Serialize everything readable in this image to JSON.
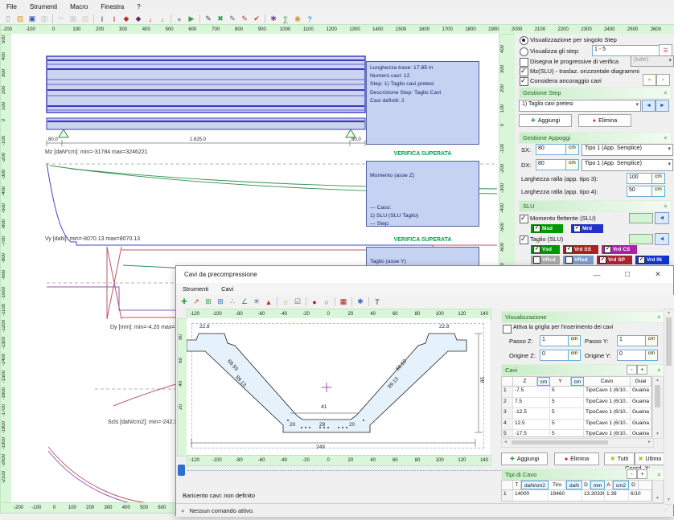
{
  "app": {
    "status_note": "main window"
  },
  "menubar": {
    "items": [
      "File",
      "Strumenti",
      "Macro",
      "Finestra",
      "?"
    ]
  },
  "toolbar": {
    "icons": [
      {
        "name": "new-document-icon",
        "glyph": "▯",
        "color": "#8899bb"
      },
      {
        "name": "open-folder-icon",
        "glyph": "▨",
        "color": "#d79b2a"
      },
      {
        "name": "save-icon",
        "glyph": "▣",
        "color": "#2f55b0"
      },
      {
        "name": "print-icon",
        "glyph": "▥",
        "color": "#8a8f99",
        "faded": true
      },
      {
        "sep": true
      },
      {
        "name": "cut-icon",
        "glyph": "✂",
        "color": "#9aa0a8",
        "faded": true
      },
      {
        "name": "copy-icon",
        "glyph": "▦",
        "color": "#9aa0a8",
        "faded": true
      },
      {
        "name": "paste-icon",
        "glyph": "▧",
        "color": "#b0a88a",
        "faded": true
      },
      {
        "sep": true
      },
      {
        "name": "section-beam-icon",
        "glyph": "I",
        "color": "#30343c"
      },
      {
        "name": "section-edit-icon",
        "glyph": "I",
        "color": "#8a2d2d"
      },
      {
        "name": "verify-red-icon",
        "glyph": "◆",
        "color": "#b92d2d"
      },
      {
        "name": "verify-dark-icon",
        "glyph": "◆",
        "color": "#5c3566"
      },
      {
        "name": "anchor-red-icon",
        "glyph": "↓",
        "color": "#c03030"
      },
      {
        "name": "anchor-green-icon",
        "glyph": "↓",
        "color": "#2f9e44"
      },
      {
        "sep": true
      },
      {
        "name": "sphere-icon",
        "glyph": "●",
        "color": "#9aa4ae"
      },
      {
        "name": "run-icon",
        "glyph": "▶",
        "color": "#2f9e44"
      },
      {
        "sep": true
      },
      {
        "name": "draw-tool-icon",
        "glyph": "✎",
        "color": "#3a3f46"
      },
      {
        "name": "erase-tool-icon",
        "glyph": "✖",
        "color": "#2f9e44"
      },
      {
        "name": "edit-tool-icon",
        "glyph": "✎",
        "color": "#56616c"
      },
      {
        "name": "brush-red-icon",
        "glyph": "✎",
        "color": "#b23a3a"
      },
      {
        "name": "check-red-icon",
        "glyph": "✔",
        "color": "#b23a3a"
      },
      {
        "sep": true
      },
      {
        "name": "gear-icon",
        "glyph": "✱",
        "color": "#7a4a9e"
      },
      {
        "name": "stats-icon",
        "glyph": "∑",
        "color": "#2f8f4f"
      },
      {
        "name": "pan-hand-icon",
        "glyph": "◉",
        "color": "#c89a2a"
      },
      {
        "name": "help-icon",
        "glyph": "?",
        "color": "#1a6ac8"
      }
    ]
  },
  "rulers": {
    "main_top": {
      "vals": [
        "-200",
        "-100",
        "0",
        "100",
        "200",
        "300",
        "400",
        "500",
        "600",
        "700",
        "800",
        "900",
        "1000",
        "1100",
        "1200",
        "1300",
        "1400",
        "1500",
        "1600",
        "1700",
        "1800",
        "1900",
        "2000",
        "2100",
        "2200",
        "2300",
        "2400",
        "2500",
        "2600"
      ],
      "start": 8,
      "step": 28.8,
      "v": false
    },
    "main_left": {
      "vals": [
        "500",
        "400",
        "300",
        "200",
        "100",
        "0",
        "-100",
        "-200",
        "-300",
        "-400",
        "-500",
        "-600",
        "-700",
        "-800",
        "-900",
        "-1000",
        "-1100",
        "-1200",
        "-1300",
        "-1400",
        "-1500",
        "-1600",
        "-1700",
        "-1800",
        "-1900",
        "-2000",
        "-2100"
      ],
      "start": 8,
      "step": 20.85,
      "v": true
    },
    "main_right": {
      "vals": [
        "400",
        "300",
        "200",
        "100",
        "0",
        "-100",
        "-200",
        "-300",
        "-400",
        "-500",
        "-600",
        "-700"
      ],
      "start": 20,
      "step": 24.6,
      "v": true
    },
    "main_bottom": {
      "vals": [
        "-200",
        "-100",
        "0",
        "100",
        "200",
        "300",
        "400",
        "500",
        "600",
        "700"
      ],
      "start": 22,
      "step": 22.3,
      "v": false
    },
    "child_top": {
      "vals": [
        "-120",
        "-100",
        "-80",
        "-60",
        "-40",
        "-20",
        "0",
        "20",
        "40",
        "60",
        "80",
        "100",
        "120",
        "140"
      ],
      "start": 9,
      "step": 27.7,
      "v": false
    },
    "child_bottom": {
      "vals": [
        "-120",
        "-100",
        "-80",
        "-60",
        "-40",
        "-20",
        "0",
        "20",
        "40",
        "60",
        "80",
        "100",
        "120",
        "140"
      ],
      "start": 9,
      "step": 27.7,
      "v": false
    },
    "child_left": {
      "vals": [
        "80",
        "60",
        "40",
        "20"
      ],
      "start": 26,
      "step": 29,
      "v": true
    }
  },
  "canvas": {
    "beam": {
      "dim_left": "80.0",
      "dim_mid": "1.625.0",
      "dim_right": "80.0"
    },
    "info_box": [
      "Lunghezza trave: 17.85 m",
      "Numero cavi: 12",
      "Step: 1) Taglio cavi pretesi",
      "Descrizione Step: Taglio Cavi",
      "Casi definiti: 2"
    ],
    "mz_label": "Mz [daN*cm]: min=-31784 max=3246221",
    "vy_label": "Vy [daN]: min=-8070.13 max=8070.13",
    "dy_label": "Dy [mm]: min=-4.20 max=18.67",
    "scls_label": "Scls [daN/cm2]: min=-242.33(-261.45) r",
    "verdict_mz": "VERIFICA SUPERATA",
    "verdict_vy": "VERIFICA SUPERATA",
    "momento_box": {
      "title": "Momento (asse Z)",
      "lines": [
        "--- Caso:",
        "1) SLU (SLU Taglio)",
        "--- Step:",
        "1) Taglio cavi pretesi",
        "--- Descrizione Step:",
        "Taglio Cavi"
      ]
    },
    "taglio_box": {
      "title": "Taglio (asse Y)",
      "lines": [
        "--- Caso:"
      ]
    },
    "colors": {
      "moment_blue": "#4646cc",
      "envelope_green": "#2f8f4f",
      "shear_red": "#bf5565",
      "shear_purple": "#9058b0"
    }
  },
  "panel": {
    "radio_single": "Visualizzazione per singolo Step",
    "radio_steps": "Visualizza gli step:",
    "steps_value": "1 - 5",
    "chk_progressive": "Disegna le progressive di verifica",
    "progressive_combo": "(tutte)",
    "chk_mzslu": "Mz(SLU) - traslaz. orizzontale diagrammi",
    "chk_ancoraggio": "Considera ancoraggio cavi",
    "gestione_step": {
      "title": "Gestione Step",
      "combo": "1) Taglio cavi pretesi",
      "aggiungi": "Aggiungi",
      "elimina": "Elimina"
    },
    "gestione_appoggi": {
      "title": "Gestione Appoggi",
      "sx_label": "SX:",
      "sx_value": "80",
      "dx_label": "DX:",
      "dx_value": "80",
      "unit": "cm",
      "sx_combo": "Tipo 1 (App. Semplice)",
      "dx_combo": "Tipo 1 (App. Semplice)",
      "ralla3_label": "Larghezza ralla (app. tipo 3):",
      "ralla3_value": "100",
      "ralla4_label": "Larghezza ralla (app. tipo 4):",
      "ralla4_value": "50"
    },
    "slu": {
      "title": "SLU",
      "momento_label": "Momento flettente (SLU)",
      "taglio_label": "Taglio (SLU)",
      "chips_m": [
        {
          "label": "Msd",
          "color": "#009900",
          "on": true
        },
        {
          "label": "Mrd",
          "color": "#2233cc",
          "on": true
        }
      ],
      "chips_t1": [
        {
          "label": "Vsd",
          "color": "#009900",
          "on": true
        },
        {
          "label": "Vrd SS",
          "color": "#aa2222",
          "on": true
        },
        {
          "label": "Vrd CS",
          "color": "#aa22aa",
          "on": true
        }
      ],
      "chips_t2": [
        {
          "label": "VRcd",
          "color": "#a8a8a8",
          "on": false
        },
        {
          "label": "VRsd",
          "color": "#7b9cc9",
          "on": false
        },
        {
          "label": "Vrd SP",
          "color": "#aa2233",
          "on": true
        },
        {
          "label": "Vrd IN",
          "color": "#1133cc",
          "on": true
        }
      ]
    }
  },
  "child": {
    "title": "Cavi da precompressione",
    "menubar": [
      "Strumenti",
      "Cavi"
    ],
    "toolbar": {
      "icons": [
        {
          "name": "add-cable-icon",
          "glyph": "✚",
          "color": "#2f9e44"
        },
        {
          "name": "move-cable-icon",
          "glyph": "↗",
          "color": "#b23a3a"
        },
        {
          "name": "grid-green-icon",
          "glyph": "⊞",
          "color": "#2f9e44"
        },
        {
          "name": "grid-blue-icon",
          "glyph": "⊞",
          "color": "#2a7ab9"
        },
        {
          "name": "scatter-icon",
          "glyph": "∴",
          "color": "#56616c"
        },
        {
          "name": "polyline-icon",
          "glyph": "∠",
          "color": "#2f8f4f"
        },
        {
          "name": "molecule-icon",
          "glyph": "✳",
          "color": "#56616c"
        },
        {
          "name": "warning-icon",
          "glyph": "▲",
          "color": "#c03030"
        },
        {
          "sep": true
        },
        {
          "name": "lamp-icon",
          "glyph": "☼",
          "color": "#c8a22a"
        },
        {
          "name": "check-grid-icon",
          "glyph": "☑",
          "color": "#56616c"
        },
        {
          "sep": true
        },
        {
          "name": "red-dot-icon",
          "glyph": "●",
          "color": "#cc1111"
        },
        {
          "name": "red-ring-icon",
          "glyph": "○",
          "color": "#cc1111"
        },
        {
          "sep": true
        },
        {
          "name": "red-grid-icon",
          "glyph": "▦",
          "color": "#a22222"
        },
        {
          "sep": true
        },
        {
          "name": "gear2-icon",
          "glyph": "✱",
          "color": "#3a6ab9"
        },
        {
          "sep": true
        },
        {
          "name": "text-tool-icon",
          "glyph": "T",
          "color": "#30343c"
        }
      ]
    },
    "viz": {
      "title": "Visualizzazione",
      "grid_label": "Attiva la griglia per l'inserimento dei cavi",
      "passo_z": "Passo Z:",
      "passo_z_value": "1",
      "passo_y": "Passo Y:",
      "passo_y_value": "1",
      "origine_z": "Origine Z:",
      "origine_z_value": "0",
      "origine_y": "Origine Y:",
      "origine_y_value": "0",
      "unit": "cm"
    },
    "cavi": {
      "title": "Cavi",
      "minus": "-",
      "plus": "+",
      "headers": {
        "z": "Z",
        "y": "Y",
        "cavo": "Cavo",
        "guaina": "Guai",
        "unit": "cm"
      },
      "rows": [
        [
          "1",
          "-7.5",
          "5",
          "TipoCavo 1 (6/10..",
          "Guaina 1"
        ],
        [
          "2",
          "7.5",
          "5",
          "TipoCavo 1 (6/10..",
          "Guaina 1"
        ],
        [
          "3",
          "-12.5",
          "5",
          "TipoCavo 1 (6/10..",
          "Guaina 1"
        ],
        [
          "4",
          "12.5",
          "5",
          "TipoCavo 1 (6/10..",
          "Guaina 1"
        ],
        [
          "5",
          "-17.5",
          "5",
          "TipoCavo 1 (6/10..",
          "Guaina 1"
        ]
      ],
      "buttons": [
        "Aggiungi",
        "Elimina",
        "Tutti",
        "Ultimo"
      ]
    },
    "tipi": {
      "title": "Tipi di Cavo",
      "minus": "-",
      "plus": "+",
      "headers": {
        "t": "T",
        "t_unit": "daN/cm2",
        "tiro": "Tiro",
        "tiro_unit": "daN",
        "d": "D",
        "d_unit": "mm",
        "a": "A",
        "a_unit": "cm2",
        "last": "D"
      },
      "rows": [
        [
          "1",
          "14000",
          "19460",
          "13.30339..",
          "1.39",
          "6/10"
        ]
      ]
    },
    "section": {
      "flange_left": "22.8",
      "flange_right": "22.8",
      "web_left_out": "68.59",
      "web_left_in": "89.13",
      "web_right_out": "68.59",
      "web_right_in": "89.13",
      "floor": "41",
      "bot_left": "20",
      "bot_mid": "29",
      "bot_right": "20",
      "width_total": "249",
      "height": "85"
    },
    "coord_label": "Coord. X:",
    "coord_value": "0",
    "coord_unit": "cm",
    "baricentro": "Baricento cavi: non definito",
    "status": "Nessun comando attivo."
  }
}
